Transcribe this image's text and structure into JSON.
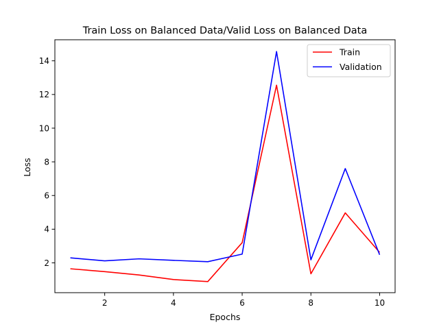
{
  "chart_data": {
    "type": "line",
    "title": "Train Loss on Balanced Data/Valid Loss on Balanced Data",
    "xlabel": "Epochs",
    "ylabel": "Loss",
    "x": [
      1,
      2,
      3,
      4,
      5,
      6,
      7,
      8,
      9,
      10
    ],
    "xlim": [
      0.55,
      10.45
    ],
    "ylim": [
      0.23,
      15.25
    ],
    "xticks": [
      2,
      4,
      6,
      8,
      10
    ],
    "yticks": [
      2,
      4,
      6,
      8,
      10,
      12,
      14
    ],
    "grid": false,
    "legend_position": "top-right",
    "series": [
      {
        "name": "Train",
        "color": "#ff0000",
        "values": [
          1.65,
          1.48,
          1.28,
          1.01,
          0.89,
          3.2,
          12.55,
          1.35,
          4.97,
          2.62
        ]
      },
      {
        "name": "Validation",
        "color": "#0000ff",
        "values": [
          2.3,
          2.12,
          2.24,
          2.15,
          2.07,
          2.52,
          14.55,
          2.18,
          7.6,
          2.48
        ]
      }
    ]
  }
}
